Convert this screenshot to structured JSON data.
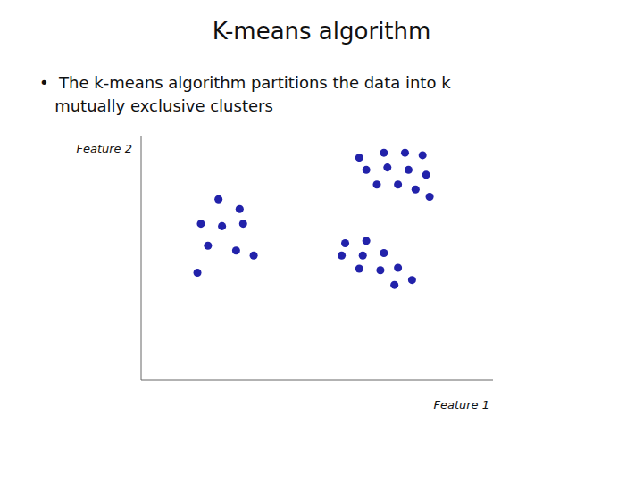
{
  "chart_data": {
    "type": "scatter",
    "title": "K-means algorithm",
    "annotations": [
      "•  The k-means algorithm partitions the data into k",
      "   mutually exclusive clusters"
    ],
    "xlabel": "Feature 1",
    "ylabel": "Feature 2",
    "xlim": [
      0,
      5.0
    ],
    "ylim": [
      0,
      5.0
    ],
    "xticks": [],
    "yticks": [],
    "tick_labels": false,
    "grid": false,
    "series": [
      {
        "color": "#2222aa",
        "values": [
          [
            1.1,
            3.7
          ],
          [
            1.4,
            3.5
          ],
          [
            0.85,
            3.2
          ],
          [
            1.15,
            3.15
          ],
          [
            1.45,
            3.2
          ],
          [
            0.95,
            2.75
          ],
          [
            1.35,
            2.65
          ],
          [
            1.6,
            2.55
          ],
          [
            0.8,
            2.2
          ]
        ]
      },
      {
        "color": "#2222aa",
        "values": [
          [
            3.1,
            4.55
          ],
          [
            3.45,
            4.65
          ],
          [
            3.75,
            4.65
          ],
          [
            4.0,
            4.6
          ],
          [
            3.2,
            4.3
          ],
          [
            3.5,
            4.35
          ],
          [
            3.8,
            4.3
          ],
          [
            4.05,
            4.2
          ],
          [
            3.35,
            4.0
          ],
          [
            3.65,
            4.0
          ],
          [
            3.9,
            3.9
          ],
          [
            4.1,
            3.75
          ]
        ]
      },
      {
        "color": "#2222aa",
        "values": [
          [
            2.9,
            2.8
          ],
          [
            3.2,
            2.85
          ],
          [
            2.85,
            2.55
          ],
          [
            3.15,
            2.55
          ],
          [
            3.45,
            2.6
          ],
          [
            3.1,
            2.28
          ],
          [
            3.4,
            2.25
          ],
          [
            3.65,
            2.3
          ],
          [
            3.85,
            2.05
          ],
          [
            3.6,
            1.95
          ]
        ]
      }
    ]
  }
}
